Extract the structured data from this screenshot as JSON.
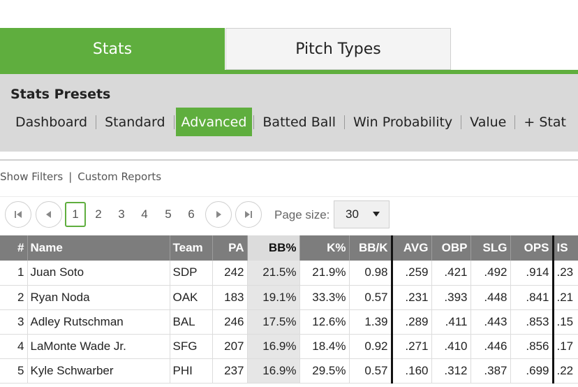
{
  "tabs": [
    {
      "label": "Stats",
      "active": true
    },
    {
      "label": "Pitch Types",
      "active": false
    }
  ],
  "presets": {
    "title": "Stats Presets",
    "items": [
      "Dashboard",
      "Standard",
      "Advanced",
      "Batted Ball",
      "Win Probability",
      "Value",
      "+ Stat"
    ],
    "active": "Advanced"
  },
  "links": {
    "show_filters": "Show Filters",
    "separator": "|",
    "custom_reports": "Custom Reports"
  },
  "pager": {
    "pages": [
      "1",
      "2",
      "3",
      "4",
      "5",
      "6"
    ],
    "current_page": "1",
    "page_size_label": "Page size:",
    "page_size_value": "30"
  },
  "table": {
    "columns": [
      "#",
      "Name",
      "Team",
      "PA",
      "BB%",
      "K%",
      "BB/K",
      "AVG",
      "OBP",
      "SLG",
      "OPS",
      "IS"
    ],
    "sorted_column": "BB%",
    "rows": [
      [
        "1",
        "Juan Soto",
        "SDP",
        "242",
        "21.5%",
        "21.9%",
        "0.98",
        ".259",
        ".421",
        ".492",
        ".914",
        ".23"
      ],
      [
        "2",
        "Ryan Noda",
        "OAK",
        "183",
        "19.1%",
        "33.3%",
        "0.57",
        ".231",
        ".393",
        ".448",
        ".841",
        ".21"
      ],
      [
        "3",
        "Adley Rutschman",
        "BAL",
        "246",
        "17.5%",
        "12.6%",
        "1.39",
        ".289",
        ".411",
        ".443",
        ".853",
        ".15"
      ],
      [
        "4",
        "LaMonte Wade Jr.",
        "SFG",
        "207",
        "16.9%",
        "18.4%",
        "0.92",
        ".271",
        ".410",
        ".446",
        ".856",
        ".17"
      ],
      [
        "5",
        "Kyle Schwarber",
        "PHI",
        "237",
        "16.9%",
        "29.5%",
        "0.57",
        ".160",
        ".312",
        ".387",
        ".699",
        ".22"
      ]
    ]
  },
  "colors": {
    "accent": "#5fae3e",
    "header_gray": "#7d7d7d",
    "panel_gray": "#d9d9d9"
  }
}
